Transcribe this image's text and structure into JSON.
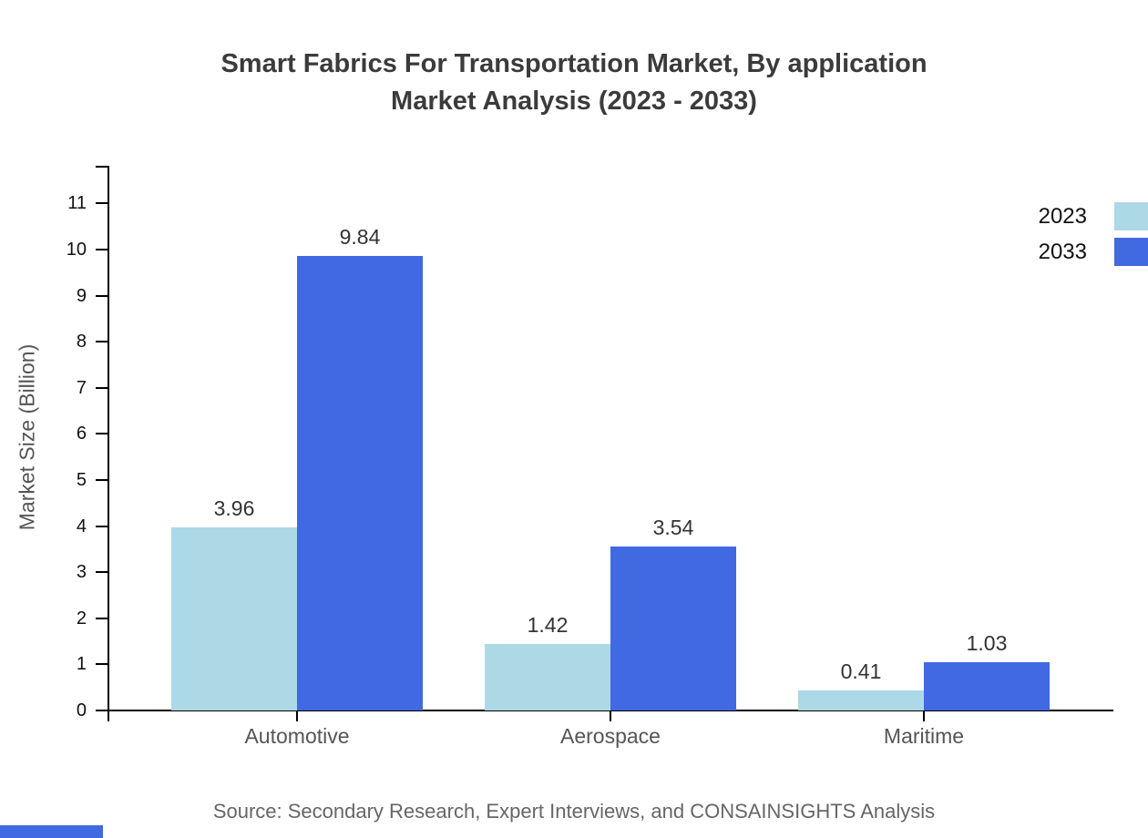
{
  "chart_data": {
    "type": "bar",
    "title_lines": [
      "Smart Fabrics For Transportation Market, By application",
      "Market Analysis (2023 - 2033)"
    ],
    "categories": [
      "Automotive",
      "Aerospace",
      "Maritime"
    ],
    "series": [
      {
        "name": "2023",
        "color": "#ADD8E6",
        "values": [
          3.96,
          1.42,
          0.41
        ]
      },
      {
        "name": "2033",
        "color": "#4169E1",
        "values": [
          9.84,
          3.54,
          1.03
        ]
      }
    ],
    "xlabel": "",
    "ylabel": "Market Size (Billion)",
    "ylim": [
      0,
      11.8
    ],
    "yticks": [
      0,
      1,
      2,
      3,
      4,
      5,
      6,
      7,
      8,
      9,
      10,
      11
    ],
    "grid": false,
    "legend_position": "top-right",
    "source_note": "Source: Secondary Research, Expert Interviews, and CONSAINSIGHTS Analysis"
  },
  "footer": {
    "accent_color": "#4169E1"
  }
}
